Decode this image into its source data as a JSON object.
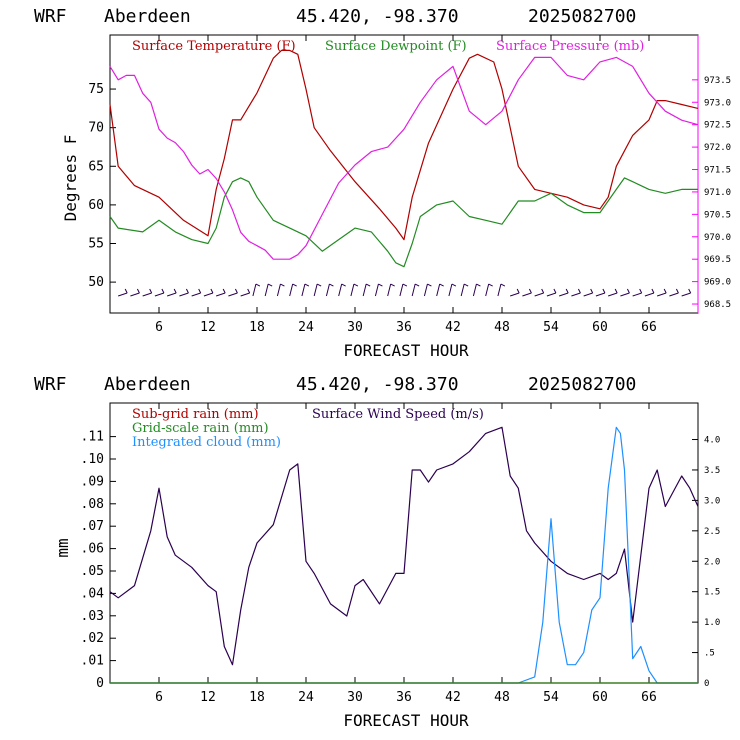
{
  "panels": [
    {
      "header": {
        "model": "WRF",
        "location": "Aberdeen",
        "coords": "45.420, -98.370",
        "run": "2025082700"
      },
      "xlabel": "FORECAST HOUR",
      "ylabel": "Degrees F",
      "legend": [
        {
          "label": "Surface Temperature (F)",
          "color": "#b00000"
        },
        {
          "label": "Surface Dewpoint (F)",
          "color": "#228b22"
        },
        {
          "label": "Surface Pressure (mb)",
          "color": "#e020e0"
        }
      ]
    },
    {
      "header": {
        "model": "WRF",
        "location": "Aberdeen",
        "coords": "45.420, -98.370",
        "run": "2025082700"
      },
      "xlabel": "FORECAST HOUR",
      "ylabel": "mm",
      "legend": [
        {
          "label": "Sub-grid rain (mm)",
          "color": "#b00000"
        },
        {
          "label": "Grid-scale rain (mm)",
          "color": "#228b22"
        },
        {
          "label": "Integrated cloud (mm)",
          "color": "#1e90ff"
        },
        {
          "label": "Surface Wind Speed (m/s)",
          "color": "#2b0050"
        }
      ]
    }
  ],
  "chart_data": [
    {
      "type": "line",
      "xlim": [
        0,
        72
      ],
      "ylim": [
        46,
        82
      ],
      "y2lim": [
        968.3,
        974.5
      ],
      "x_ticks": [
        "6",
        "12",
        "18",
        "24",
        "30",
        "36",
        "42",
        "48",
        "54",
        "60",
        "66"
      ],
      "y_ticks": [
        "50",
        "55",
        "60",
        "65",
        "70",
        "75"
      ],
      "y2_ticks": [
        "968.5",
        "969.0",
        "969.5",
        "970.0",
        "970.5",
        "971.0",
        "971.5",
        "972.0",
        "972.5",
        "973.0",
        "973.5"
      ],
      "series": [
        {
          "name": "Surface Temperature (F)",
          "color": "#b00000",
          "axis": "left",
          "x": [
            0,
            1,
            3,
            6,
            9,
            12,
            13,
            14,
            15,
            16,
            18,
            20,
            21,
            22,
            23,
            24,
            25,
            27,
            30,
            33,
            35,
            36,
            37,
            39,
            42,
            44,
            45,
            47,
            48,
            49,
            50,
            52,
            54,
            56,
            58,
            60,
            61,
            62,
            63,
            64,
            66,
            67,
            68,
            70,
            72
          ],
          "y": [
            73,
            65,
            62.5,
            61,
            58,
            56,
            62,
            66,
            71,
            71,
            74.5,
            79,
            80,
            80,
            79.5,
            75,
            70,
            67,
            63,
            59.5,
            57,
            55.5,
            61,
            68,
            75,
            79,
            79.5,
            78.5,
            75,
            70,
            65,
            62,
            61.5,
            61,
            60,
            59.5,
            61,
            65,
            67,
            69,
            71,
            73.5,
            73.5,
            73,
            72.5
          ]
        },
        {
          "name": "Surface Dewpoint (F)",
          "color": "#228b22",
          "axis": "left",
          "x": [
            0,
            1,
            4,
            6,
            8,
            10,
            12,
            13,
            14,
            15,
            16,
            17,
            18,
            20,
            22,
            24,
            26,
            28,
            30,
            32,
            34,
            35,
            36,
            37,
            38,
            40,
            42,
            44,
            46,
            48,
            50,
            52,
            54,
            56,
            58,
            60,
            62,
            63,
            64,
            66,
            68,
            70,
            72
          ],
          "y": [
            58.5,
            57,
            56.5,
            58,
            56.5,
            55.5,
            55,
            57,
            61,
            63,
            63.5,
            63,
            61,
            58,
            57,
            56,
            54,
            55.5,
            57,
            56.5,
            54,
            52.5,
            52,
            55,
            58.5,
            60,
            60.5,
            58.5,
            58,
            57.5,
            60.5,
            60.5,
            61.5,
            60,
            59,
            59,
            62,
            63.5,
            63,
            62,
            61.5,
            62,
            62
          ]
        },
        {
          "name": "Surface Pressure (mb)",
          "color": "#e020e0",
          "axis": "right",
          "x": [
            0,
            1,
            2,
            3,
            4,
            5,
            6,
            7,
            8,
            9,
            10,
            11,
            12,
            13,
            14,
            15,
            16,
            17,
            18,
            19,
            20,
            21,
            22,
            23,
            24,
            26,
            28,
            30,
            32,
            34,
            36,
            38,
            40,
            42,
            44,
            46,
            48,
            50,
            52,
            54,
            56,
            58,
            60,
            62,
            64,
            66,
            68,
            70,
            72
          ],
          "y": [
            973.8,
            973.5,
            973.6,
            973.6,
            973.2,
            973.0,
            972.4,
            972.2,
            972.1,
            971.9,
            971.6,
            971.4,
            971.5,
            971.3,
            971.0,
            970.6,
            970.1,
            969.9,
            969.8,
            969.7,
            969.5,
            969.5,
            969.5,
            969.6,
            969.8,
            970.5,
            971.2,
            971.6,
            971.9,
            972.0,
            972.4,
            973.0,
            973.5,
            973.8,
            972.8,
            972.5,
            972.8,
            973.5,
            974.0,
            974.0,
            973.6,
            973.5,
            973.9,
            974.0,
            973.8,
            973.2,
            972.8,
            972.6,
            972.5
          ]
        }
      ],
      "wind_barbs": "hourly surface wind barbs along the bottom (~48 F level)"
    },
    {
      "type": "line",
      "xlim": [
        0,
        72
      ],
      "ylim": [
        0,
        0.125
      ],
      "y2lim": [
        0,
        4.6
      ],
      "x_ticks": [
        "6",
        "12",
        "18",
        "24",
        "30",
        "36",
        "42",
        "48",
        "54",
        "60",
        "66"
      ],
      "y_ticks": [
        "0",
        ".01",
        ".02",
        ".03",
        ".04",
        ".05",
        ".06",
        ".07",
        ".08",
        ".09",
        ".10",
        ".11"
      ],
      "y2_ticks": [
        "0",
        ".5",
        "1.0",
        "1.5",
        "2.0",
        "2.5",
        "3.0",
        "3.5",
        "4.0"
      ],
      "series": [
        {
          "name": "Surface Wind Speed (m/s)",
          "color": "#2b0050",
          "axis": "right",
          "x": [
            0,
            1,
            3,
            5,
            6,
            7,
            8,
            10,
            12,
            13,
            14,
            15,
            16,
            17,
            18,
            20,
            22,
            23,
            24,
            25,
            27,
            29,
            30,
            31,
            33,
            35,
            36,
            37,
            38,
            39,
            40,
            42,
            44,
            46,
            48,
            49,
            50,
            51,
            52,
            54,
            56,
            58,
            60,
            61,
            62,
            63,
            64,
            66,
            67,
            68,
            70,
            71,
            72
          ],
          "y": [
            1.5,
            1.4,
            1.6,
            2.5,
            3.2,
            2.4,
            2.1,
            1.9,
            1.6,
            1.5,
            0.6,
            0.3,
            1.2,
            1.9,
            2.3,
            2.6,
            3.5,
            3.6,
            2.0,
            1.8,
            1.3,
            1.1,
            1.6,
            1.7,
            1.3,
            1.8,
            1.8,
            3.5,
            3.5,
            3.3,
            3.5,
            3.6,
            3.8,
            4.1,
            4.2,
            3.4,
            3.2,
            2.5,
            2.3,
            2.0,
            1.8,
            1.7,
            1.8,
            1.7,
            1.8,
            2.2,
            1.0,
            3.2,
            3.5,
            2.9,
            3.4,
            3.2,
            2.9
          ]
        },
        {
          "name": "Integrated cloud (mm)",
          "color": "#1e90ff",
          "axis": "right",
          "x": [
            0,
            50,
            52,
            53,
            54,
            55,
            56,
            57,
            58,
            59,
            60,
            61,
            62,
            62.5,
            63,
            64,
            65,
            66,
            67,
            72
          ],
          "y": [
            0,
            0,
            0.1,
            1.0,
            2.7,
            1.0,
            0.3,
            0.3,
            0.5,
            1.2,
            1.4,
            3.2,
            4.2,
            4.1,
            3.5,
            0.4,
            0.6,
            0.2,
            0,
            0
          ]
        },
        {
          "name": "Sub-grid rain (mm)",
          "color": "#b00000",
          "axis": "left",
          "x": [
            0,
            72
          ],
          "y": [
            0,
            0
          ]
        },
        {
          "name": "Grid-scale rain (mm)",
          "color": "#228b22",
          "axis": "left",
          "x": [
            0,
            72
          ],
          "y": [
            0,
            0
          ]
        }
      ]
    }
  ]
}
